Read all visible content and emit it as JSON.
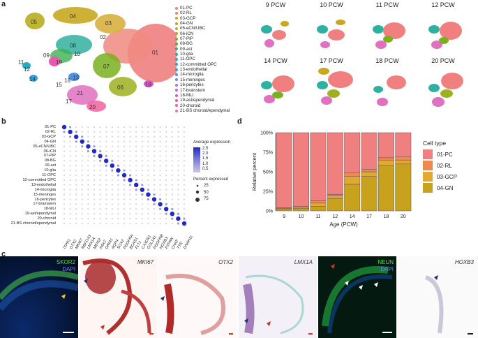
{
  "figure": {
    "panel_labels": {
      "a": "a",
      "b": "b",
      "c": "c",
      "d": "d"
    },
    "umap": {
      "cluster_labels": [
        "01",
        "02",
        "03",
        "04",
        "05",
        "06",
        "07",
        "08",
        "09",
        "10",
        "11",
        "12",
        "13",
        "14",
        "15",
        "16",
        "17",
        "18",
        "19",
        "20",
        "21"
      ],
      "legend": [
        {
          "label": "01-PC",
          "color": "#f08080"
        },
        {
          "label": "02-RL",
          "color": "#ee8a55"
        },
        {
          "label": "03-GCP",
          "color": "#d9a030"
        },
        {
          "label": "04-GN",
          "color": "#c8a020"
        },
        {
          "label": "05-eCN/UBC",
          "color": "#b8ae20"
        },
        {
          "label": "06-iCN",
          "color": "#9eb020"
        },
        {
          "label": "07-PIP",
          "color": "#7ab020"
        },
        {
          "label": "08-BG",
          "color": "#40b040"
        },
        {
          "label": "09-ast",
          "color": "#30b080"
        },
        {
          "label": "10-glia",
          "color": "#20b0a0"
        },
        {
          "label": "11-OPC",
          "color": "#20aec0"
        },
        {
          "label": "12-committed OPC",
          "color": "#20a8d0"
        },
        {
          "label": "13-endothelial",
          "color": "#30a0e0"
        },
        {
          "label": "14-microglia",
          "color": "#5090e8"
        },
        {
          "label": "15-meninges",
          "color": "#8080e8"
        },
        {
          "label": "16-pericytes",
          "color": "#a070e0"
        },
        {
          "label": "17-brainstem",
          "color": "#c060d8"
        },
        {
          "label": "18-MLI",
          "color": "#d858c8"
        },
        {
          "label": "19-ast/ependymal",
          "color": "#e858b0"
        },
        {
          "label": "20-choroid",
          "color": "#f060a0"
        },
        {
          "label": "21-BS choroid/ependymal",
          "color": "#f070a0"
        }
      ],
      "timepoints": [
        "9 PCW",
        "10 PCW",
        "11 PCW",
        "12 PCW",
        "14 PCW",
        "17 PCW",
        "18 PCW",
        "20 PCW"
      ]
    },
    "dotplot": {
      "rows": [
        "01-PC",
        "02-RL",
        "03-GCP",
        "04-GN",
        "05-eCN/UBC",
        "06-iCN",
        "07-PIP",
        "08-BG",
        "09-ast",
        "10-glia",
        "11-OPC",
        "12-committed OPC",
        "13-endothelial",
        "14-microglia",
        "15-meninges",
        "16-pericytes",
        "17-brainstem",
        "18-MLI",
        "19-ast/ependymal",
        "20-choroid",
        "21-BS choroid/ependymal"
      ],
      "genes": [
        "ITPR1",
        "OTX2",
        "MKI67",
        "RBFOX3",
        "LMX1A",
        "MEIS2",
        "PAX2",
        "GRIA1",
        "AQP4",
        "SOX2",
        "PDGFRA",
        "BCAS1",
        "FLT1",
        "CX3CR1",
        "COL1A1",
        "PDGFRB",
        "HOXB3",
        "PTPRK",
        "CHAT",
        "TTR",
        "DNAH11"
      ],
      "legend_expr_title": "Average expression",
      "legend_expr_ticks": [
        "2.5",
        "2.0",
        "1.5",
        "1.0",
        "0.5"
      ],
      "legend_pct_title": "Percent expressed",
      "legend_pct_ticks": [
        "25",
        "50",
        "75"
      ]
    },
    "micrographs": [
      {
        "label": "SKOR2",
        "sublabel": "DAPI"
      },
      {
        "label": "MKI67",
        "sublabel": ""
      },
      {
        "label": "OTX2",
        "sublabel": ""
      },
      {
        "label": "LMX1A",
        "sublabel": ""
      },
      {
        "label": "NEUN",
        "sublabel": "DAPI"
      },
      {
        "label": "HOXB3",
        "sublabel": ""
      }
    ]
  },
  "chart_data": {
    "type": "bar",
    "stacked": true,
    "categories": [
      "9",
      "10",
      "11",
      "12",
      "14",
      "17",
      "18",
      "20"
    ],
    "series": [
      {
        "name": "04-GN",
        "color": "#c8a21c",
        "values": [
          2,
          3,
          6,
          16,
          34,
          44,
          58,
          60
        ]
      },
      {
        "name": "03-GCP",
        "color": "#e2a832",
        "values": [
          1,
          2,
          4,
          3,
          10,
          6,
          7,
          5
        ]
      },
      {
        "name": "02-RL",
        "color": "#ee8a50",
        "values": [
          1,
          1,
          3,
          2,
          5,
          3,
          3,
          4
        ]
      },
      {
        "name": "01-PC",
        "color": "#f08080",
        "values": [
          96,
          94,
          87,
          79,
          51,
          47,
          32,
          31
        ]
      }
    ],
    "title": "",
    "xlabel": "Age (PCW)",
    "ylabel": "Relative percent",
    "yticks": [
      "0%",
      "25%",
      "50%",
      "75%",
      "100%"
    ],
    "ylim": [
      0,
      100
    ],
    "legend_title": "Cell type",
    "legend_position": "right"
  }
}
